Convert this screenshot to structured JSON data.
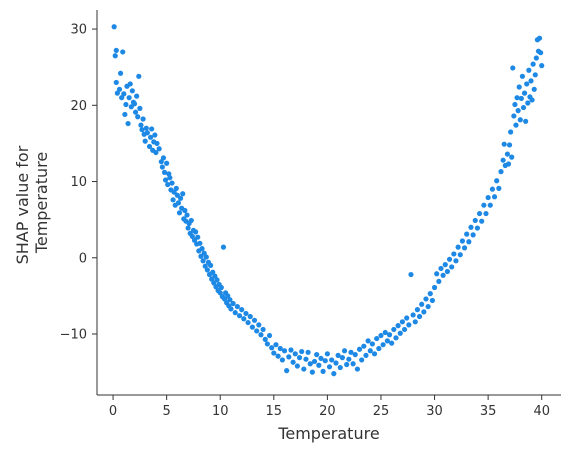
{
  "chart_data": {
    "type": "scatter",
    "xlabel": "Temperature",
    "ylabel_lines": [
      "SHAP value for",
      "Temperature"
    ],
    "xlim": [
      -1.5,
      41.8
    ],
    "ylim": [
      -18,
      32.5
    ],
    "xticks": [
      0,
      5,
      10,
      15,
      20,
      25,
      30,
      35,
      40
    ],
    "yticks": [
      -10,
      0,
      10,
      20,
      30
    ],
    "grid": false,
    "point_color": "#1e88e5",
    "model": {
      "description": "SHAP value approx 0.1*(Temperature-19)^2 - 14 with noise",
      "vertex_x": 19,
      "vertex_y": -14,
      "curvature": 0.1
    },
    "points": [
      [
        0.1,
        30.3
      ],
      [
        0.2,
        26.5
      ],
      [
        0.3,
        27.2
      ],
      [
        0.3,
        23.0
      ],
      [
        0.4,
        21.6
      ],
      [
        0.6,
        22.1
      ],
      [
        0.7,
        24.2
      ],
      [
        0.8,
        21.0
      ],
      [
        0.9,
        27.0
      ],
      [
        1.0,
        21.5
      ],
      [
        1.1,
        18.8
      ],
      [
        1.2,
        20.1
      ],
      [
        1.3,
        22.5
      ],
      [
        1.4,
        17.6
      ],
      [
        1.5,
        21.0
      ],
      [
        1.6,
        22.8
      ],
      [
        1.7,
        19.8
      ],
      [
        1.8,
        21.9
      ],
      [
        1.9,
        20.4
      ],
      [
        2.0,
        20.2
      ],
      [
        2.1,
        19.1
      ],
      [
        2.2,
        21.2
      ],
      [
        2.3,
        18.5
      ],
      [
        2.4,
        23.8
      ],
      [
        2.5,
        19.6
      ],
      [
        2.6,
        17.4
      ],
      [
        2.7,
        16.8
      ],
      [
        2.8,
        18.2
      ],
      [
        2.9,
        16.2
      ],
      [
        3.0,
        15.3
      ],
      [
        3.1,
        17.0
      ],
      [
        3.2,
        16.4
      ],
      [
        3.4,
        14.6
      ],
      [
        3.5,
        15.8
      ],
      [
        3.6,
        16.9
      ],
      [
        3.7,
        14.1
      ],
      [
        3.8,
        15.2
      ],
      [
        3.9,
        16.1
      ],
      [
        4.0,
        13.8
      ],
      [
        4.1,
        15.0
      ],
      [
        4.3,
        14.3
      ],
      [
        4.5,
        12.6
      ],
      [
        4.6,
        11.9
      ],
      [
        4.7,
        13.1
      ],
      [
        4.8,
        11.2
      ],
      [
        4.9,
        10.2
      ],
      [
        5.0,
        12.4
      ],
      [
        5.1,
        9.6
      ],
      [
        5.2,
        11.0
      ],
      [
        5.3,
        10.5
      ],
      [
        5.4,
        8.9
      ],
      [
        5.5,
        9.8
      ],
      [
        5.6,
        7.6
      ],
      [
        5.7,
        8.6
      ],
      [
        5.8,
        6.9
      ],
      [
        5.9,
        9.1
      ],
      [
        6.0,
        8.2
      ],
      [
        6.1,
        7.2
      ],
      [
        6.2,
        5.9
      ],
      [
        6.3,
        7.8
      ],
      [
        6.4,
        6.5
      ],
      [
        6.5,
        8.4
      ],
      [
        6.6,
        5.1
      ],
      [
        6.7,
        6.2
      ],
      [
        6.8,
        4.8
      ],
      [
        6.9,
        5.6
      ],
      [
        7.0,
        3.9
      ],
      [
        7.1,
        4.5
      ],
      [
        7.2,
        3.2
      ],
      [
        7.3,
        4.9
      ],
      [
        7.4,
        2.8
      ],
      [
        7.5,
        3.6
      ],
      [
        7.6,
        2.3
      ],
      [
        7.7,
        3.4
      ],
      [
        7.8,
        1.8
      ],
      [
        7.9,
        2.7
      ],
      [
        8.0,
        0.9
      ],
      [
        8.1,
        1.9
      ],
      [
        8.2,
        0.2
      ],
      [
        8.3,
        1.2
      ],
      [
        8.4,
        -0.4
      ],
      [
        8.5,
        0.6
      ],
      [
        8.6,
        -1.1
      ],
      [
        8.7,
        0.1
      ],
      [
        8.8,
        -1.6
      ],
      [
        8.9,
        -0.6
      ],
      [
        9.0,
        -2.2
      ],
      [
        9.1,
        -1.0
      ],
      [
        9.2,
        -2.8
      ],
      [
        9.3,
        -1.9
      ],
      [
        9.4,
        -3.3
      ],
      [
        9.5,
        -2.4
      ],
      [
        9.6,
        -3.8
      ],
      [
        9.7,
        -2.9
      ],
      [
        9.8,
        -4.3
      ],
      [
        9.9,
        -3.5
      ],
      [
        10.0,
        -4.6
      ],
      [
        10.1,
        -3.9
      ],
      [
        10.2,
        -5.1
      ],
      [
        10.3,
        1.4
      ],
      [
        10.4,
        -5.4
      ],
      [
        10.5,
        -4.6
      ],
      [
        10.6,
        -5.9
      ],
      [
        10.7,
        -5.0
      ],
      [
        10.8,
        -6.3
      ],
      [
        10.9,
        -5.5
      ],
      [
        11.0,
        -6.7
      ],
      [
        11.2,
        -6.0
      ],
      [
        11.4,
        -7.2
      ],
      [
        11.6,
        -6.4
      ],
      [
        11.8,
        -7.6
      ],
      [
        12.0,
        -6.8
      ],
      [
        12.2,
        -8.0
      ],
      [
        12.4,
        -7.3
      ],
      [
        12.6,
        -8.5
      ],
      [
        12.8,
        -7.7
      ],
      [
        13.0,
        -9.1
      ],
      [
        13.2,
        -8.2
      ],
      [
        13.4,
        -9.6
      ],
      [
        13.6,
        -8.8
      ],
      [
        13.8,
        -10.1
      ],
      [
        14.0,
        -9.4
      ],
      [
        14.2,
        -10.7
      ],
      [
        14.4,
        -11.3
      ],
      [
        14.6,
        -10.2
      ],
      [
        14.8,
        -11.8
      ],
      [
        15.0,
        -12.5
      ],
      [
        15.2,
        -11.4
      ],
      [
        15.4,
        -12.9
      ],
      [
        15.6,
        -11.9
      ],
      [
        15.8,
        -13.4
      ],
      [
        16.0,
        -12.2
      ],
      [
        16.2,
        -14.8
      ],
      [
        16.4,
        -13.0
      ],
      [
        16.6,
        -12.1
      ],
      [
        16.8,
        -13.7
      ],
      [
        17.0,
        -12.6
      ],
      [
        17.2,
        -14.2
      ],
      [
        17.4,
        -13.1
      ],
      [
        17.6,
        -12.3
      ],
      [
        17.8,
        -14.6
      ],
      [
        18.0,
        -13.3
      ],
      [
        18.2,
        -12.4
      ],
      [
        18.4,
        -13.9
      ],
      [
        18.6,
        -15.0
      ],
      [
        18.8,
        -13.6
      ],
      [
        19.0,
        -12.7
      ],
      [
        19.2,
        -14.1
      ],
      [
        19.4,
        -13.2
      ],
      [
        19.6,
        -14.9
      ],
      [
        19.8,
        -13.5
      ],
      [
        20.0,
        -12.6
      ],
      [
        20.2,
        -14.3
      ],
      [
        20.4,
        -13.4
      ],
      [
        20.6,
        -15.2
      ],
      [
        20.8,
        -13.8
      ],
      [
        21.0,
        -12.8
      ],
      [
        21.2,
        -14.4
      ],
      [
        21.4,
        -13.1
      ],
      [
        21.6,
        -12.2
      ],
      [
        21.8,
        -14.0
      ],
      [
        22.0,
        -13.3
      ],
      [
        22.2,
        -12.4
      ],
      [
        22.4,
        -13.9
      ],
      [
        22.6,
        -12.7
      ],
      [
        22.8,
        -14.6
      ],
      [
        23.0,
        -12.0
      ],
      [
        23.2,
        -13.4
      ],
      [
        23.4,
        -11.6
      ],
      [
        23.6,
        -12.8
      ],
      [
        23.8,
        -10.9
      ],
      [
        24.0,
        -12.2
      ],
      [
        24.2,
        -11.3
      ],
      [
        24.4,
        -12.6
      ],
      [
        24.6,
        -10.6
      ],
      [
        24.8,
        -11.9
      ],
      [
        25.0,
        -10.2
      ],
      [
        25.2,
        -11.4
      ],
      [
        25.4,
        -9.8
      ],
      [
        25.6,
        -10.9
      ],
      [
        25.8,
        -10.1
      ],
      [
        26.0,
        -11.2
      ],
      [
        26.2,
        -9.4
      ],
      [
        26.4,
        -10.5
      ],
      [
        26.6,
        -8.9
      ],
      [
        26.8,
        -9.9
      ],
      [
        27.0,
        -8.4
      ],
      [
        27.2,
        -9.4
      ],
      [
        27.4,
        -7.9
      ],
      [
        27.6,
        -8.8
      ],
      [
        27.8,
        -2.2
      ],
      [
        28.0,
        -7.5
      ],
      [
        28.2,
        -8.4
      ],
      [
        28.4,
        -6.8
      ],
      [
        28.6,
        -7.7
      ],
      [
        28.8,
        -6.1
      ],
      [
        29.0,
        -7.1
      ],
      [
        29.2,
        -5.4
      ],
      [
        29.4,
        -6.4
      ],
      [
        29.6,
        -4.7
      ],
      [
        29.8,
        -5.6
      ],
      [
        30.0,
        -3.9
      ],
      [
        30.2,
        -2.1
      ],
      [
        30.4,
        -3.1
      ],
      [
        30.6,
        -1.4
      ],
      [
        30.8,
        -2.3
      ],
      [
        31.0,
        -0.9
      ],
      [
        31.2,
        -1.8
      ],
      [
        31.4,
        -0.2
      ],
      [
        31.6,
        -1.2
      ],
      [
        31.8,
        0.5
      ],
      [
        32.0,
        -0.4
      ],
      [
        32.2,
        1.4
      ],
      [
        32.4,
        0.4
      ],
      [
        32.6,
        2.2
      ],
      [
        32.8,
        1.3
      ],
      [
        33.0,
        3.1
      ],
      [
        33.2,
        2.1
      ],
      [
        33.4,
        4.0
      ],
      [
        33.6,
        3.0
      ],
      [
        33.8,
        4.9
      ],
      [
        34.0,
        3.9
      ],
      [
        34.2,
        5.8
      ],
      [
        34.4,
        4.8
      ],
      [
        34.6,
        6.9
      ],
      [
        34.8,
        5.8
      ],
      [
        35.0,
        7.9
      ],
      [
        35.2,
        6.9
      ],
      [
        35.4,
        9.0
      ],
      [
        35.6,
        8.0
      ],
      [
        35.8,
        10.1
      ],
      [
        36.0,
        9.1
      ],
      [
        36.2,
        11.3
      ],
      [
        36.4,
        12.8
      ],
      [
        36.5,
        14.9
      ],
      [
        36.6,
        12.1
      ],
      [
        36.8,
        13.6
      ],
      [
        36.9,
        12.3
      ],
      [
        37.0,
        14.8
      ],
      [
        37.1,
        16.5
      ],
      [
        37.2,
        13.2
      ],
      [
        37.3,
        24.9
      ],
      [
        37.4,
        18.6
      ],
      [
        37.5,
        20.1
      ],
      [
        37.6,
        17.4
      ],
      [
        37.7,
        21.0
      ],
      [
        37.8,
        19.3
      ],
      [
        37.9,
        22.4
      ],
      [
        38.0,
        18.1
      ],
      [
        38.1,
        20.9
      ],
      [
        38.2,
        23.8
      ],
      [
        38.3,
        19.7
      ],
      [
        38.4,
        21.6
      ],
      [
        38.5,
        17.9
      ],
      [
        38.6,
        22.8
      ],
      [
        38.7,
        20.3
      ],
      [
        38.8,
        24.6
      ],
      [
        38.9,
        21.1
      ],
      [
        39.0,
        23.2
      ],
      [
        39.1,
        20.7
      ],
      [
        39.2,
        25.4
      ],
      [
        39.3,
        22.1
      ],
      [
        39.4,
        24.0
      ],
      [
        39.5,
        26.2
      ],
      [
        39.6,
        28.6
      ],
      [
        39.7,
        27.1
      ],
      [
        39.8,
        28.8
      ],
      [
        39.9,
        26.9
      ],
      [
        40.0,
        25.2
      ]
    ]
  }
}
